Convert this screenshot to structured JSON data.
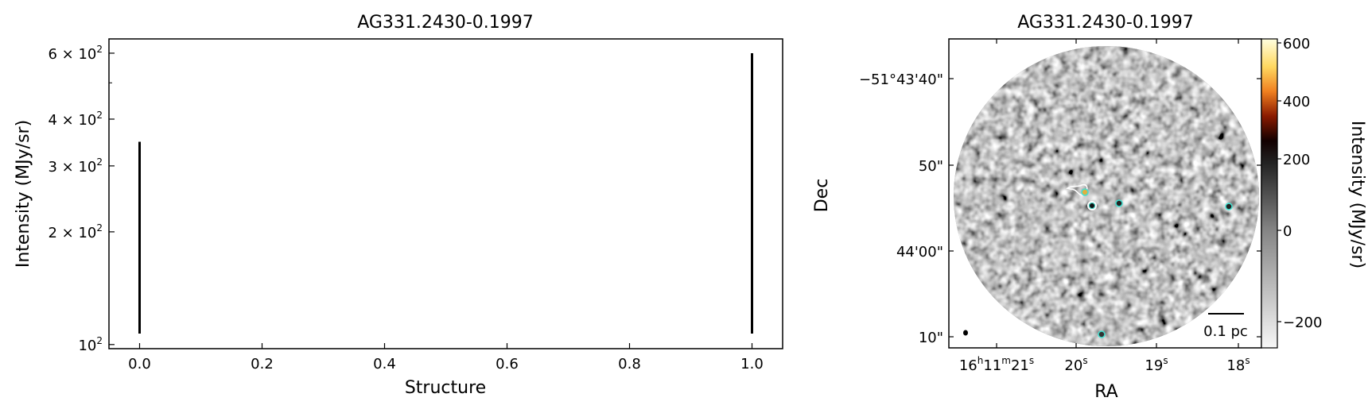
{
  "chart_data": [
    {
      "type": "line",
      "title": "AG331.2430-0.1997",
      "xlabel": "Structure",
      "ylabel": "Intensity (MJy/sr)",
      "xlim": [
        -0.05,
        1.05
      ],
      "ylim": [
        97.5,
        655
      ],
      "yscale": "log",
      "grid": false,
      "x_ticks": [
        {
          "value": 0.0,
          "label": "0.0"
        },
        {
          "value": 0.2,
          "label": "0.2"
        },
        {
          "value": 0.4,
          "label": "0.4"
        },
        {
          "value": 0.6,
          "label": "0.6"
        },
        {
          "value": 0.8,
          "label": "0.8"
        },
        {
          "value": 1.0,
          "label": "1.0"
        }
      ],
      "y_ticks": [
        {
          "value": 100,
          "mant": "",
          "label": "10",
          "exp": "2"
        },
        {
          "value": 200,
          "mant": "2 × ",
          "label": "10",
          "exp": "2"
        },
        {
          "value": 300,
          "mant": "3 × ",
          "label": "10",
          "exp": "2"
        },
        {
          "value": 400,
          "mant": "4 × ",
          "label": "10",
          "exp": "2"
        },
        {
          "value": 600,
          "mant": "6 × ",
          "label": "10",
          "exp": "2"
        }
      ],
      "y_minor_ticks": [
        500
      ],
      "segments": [
        {
          "x": 0,
          "y_min": 107,
          "y_max": 348
        },
        {
          "x": 1,
          "y_min": 107,
          "y_max": 600
        }
      ],
      "color": "#000000"
    },
    {
      "type": "heatmap",
      "title": "AG331.2430-0.1997",
      "xlabel": "RA",
      "ylabel": "Dec",
      "x_ticks": [
        {
          "label_parts": [
            "16",
            "h",
            "11",
            "m",
            "21",
            "s"
          ]
        },
        {
          "label_parts": [
            "20",
            "s"
          ]
        },
        {
          "label_parts": [
            "19",
            "s"
          ]
        },
        {
          "label_parts": [
            "18",
            "s"
          ]
        }
      ],
      "y_ticks": [
        "−51°43'40\"",
        "50\"",
        "44'00\"",
        "10\""
      ],
      "colorbar": {
        "label": "Intensity (MJy/sr)",
        "ticks": [
          "600",
          "400",
          "200",
          "0",
          "−200"
        ],
        "colormap": "grey-to-afmhot (asinh stretch)"
      },
      "scalebar_label": "0.1 pc",
      "marker_color": "#40e0d0",
      "contour_color": "#ffffff"
    }
  ]
}
